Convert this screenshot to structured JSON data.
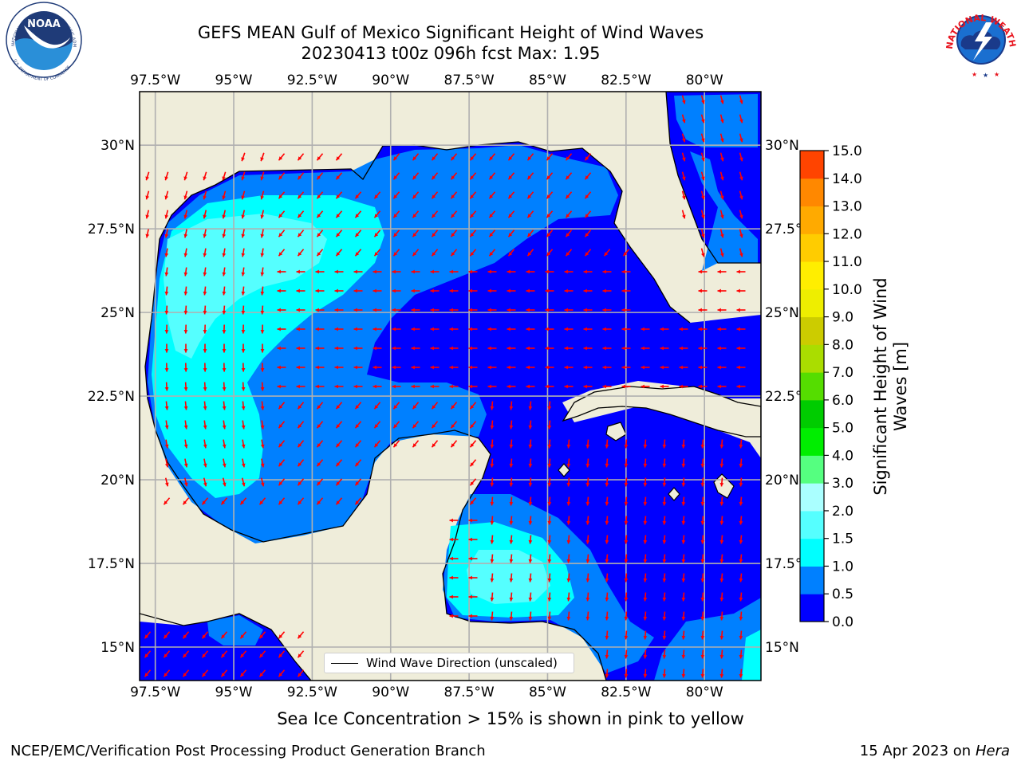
{
  "title": {
    "line1": "GEFS MEAN Gulf of Mexico Significant Height of Wind Waves",
    "line2": "20230413 t00z 096h fcst   Max: 1.95"
  },
  "map": {
    "lon_range": [
      -98.0,
      -78.2
    ],
    "lat_range": [
      14.0,
      31.6
    ],
    "lon_ticks": [
      "97.5°W",
      "95°W",
      "92.5°W",
      "90°W",
      "87.5°W",
      "85°W",
      "82.5°W",
      "80°W"
    ],
    "lat_ticks_left": [
      "30°N",
      "27.5°N",
      "25°N",
      "22.5°N",
      "20°N",
      "17.5°N",
      "15°N"
    ],
    "lat_ticks_right": [
      "30°N",
      "27.5°",
      "25°N",
      "22.5°",
      "20°N",
      "17.5°",
      "15°N"
    ],
    "grid": true,
    "colors": {
      "land": "#efedda",
      "sea_0_05": "#0000ff",
      "sea_05_10": "#0080ff",
      "sea_10_15": "#00ffff",
      "sea_15_20": "#55ffff",
      "arrow": "#ff0000"
    }
  },
  "legend": {
    "label": "Wind Wave Direction (unscaled)"
  },
  "colorbar": {
    "title_line1": "Significant Height of Wind",
    "title_line2": "Waves [m]",
    "ticks": [
      "0.0",
      "0.5",
      "1.0",
      "1.5",
      "2.0",
      "3.0",
      "4.0",
      "5.0",
      "6.0",
      "7.0",
      "8.0",
      "9.0",
      "10.0",
      "11.0",
      "12.0",
      "13.0",
      "14.0",
      "15.0"
    ],
    "colors": [
      "#0000ff",
      "#0080ff",
      "#00ffff",
      "#55ffff",
      "#aaffff",
      "#55ff80",
      "#00ee00",
      "#00cc00",
      "#55dd00",
      "#aadd00",
      "#cccc00",
      "#eeee00",
      "#ffee00",
      "#ffcc00",
      "#ffaa00",
      "#ff8800",
      "#ff4400",
      "#ff0000"
    ]
  },
  "logos": {
    "noaa_text": "NOAA",
    "noaa_icon": "noaa-logo-icon",
    "nws_icon": "nws-logo-icon"
  },
  "caption": "Sea Ice Concentration > 15% is shown in pink to yellow",
  "footer": {
    "left": "NCEP/EMC/Verification Post Processing Product Generation Branch",
    "date": "15 Apr 2023 on",
    "host": "Hera"
  }
}
